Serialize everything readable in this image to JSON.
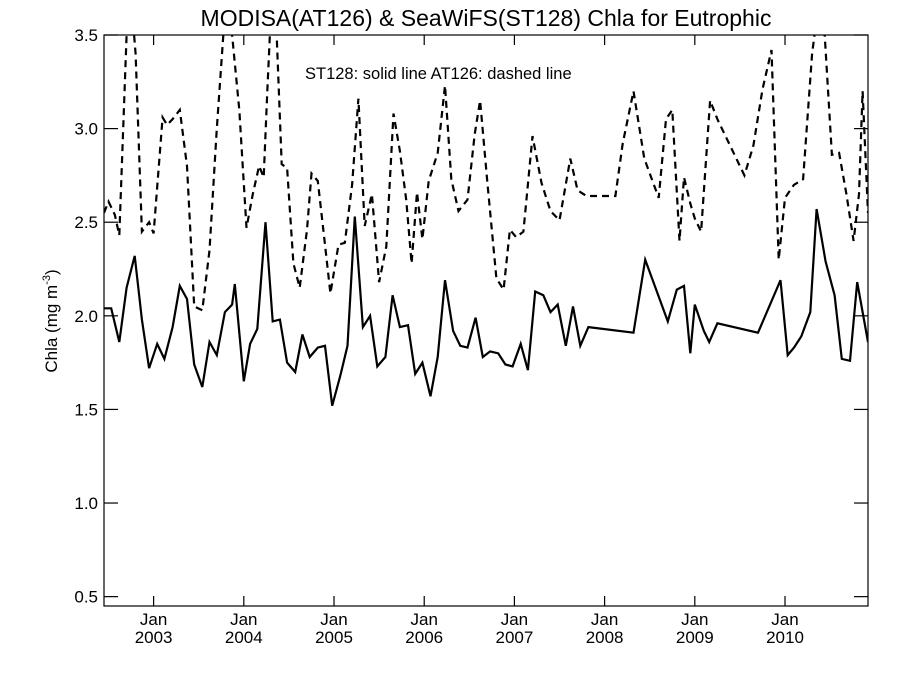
{
  "chart_data": {
    "type": "line",
    "title": "MODISA(AT126) & SeaWiFS(ST128)  Chla for Eutrophic",
    "ylabel": "Chla (mg m",
    "ylabel_superscript": "-3",
    "ylabel_close": ")",
    "annotation": "ST128: solid line   AT126: dashed line",
    "ylim": [
      0.45,
      3.5
    ],
    "xlim": [
      2002.45,
      2010.92
    ],
    "grid": false,
    "y_ticks": [
      {
        "value": 0.5,
        "label": "0.5"
      },
      {
        "value": 1.0,
        "label": "1.0"
      },
      {
        "value": 1.5,
        "label": "1.5"
      },
      {
        "value": 2.0,
        "label": "2.0"
      },
      {
        "value": 2.5,
        "label": "2.5"
      },
      {
        "value": 3.0,
        "label": "3.0"
      },
      {
        "value": 3.5,
        "label": "3.5"
      }
    ],
    "x_ticks": [
      {
        "value": 2003.0,
        "month": "Jan",
        "year": "2003"
      },
      {
        "value": 2004.0,
        "month": "Jan",
        "year": "2004"
      },
      {
        "value": 2005.0,
        "month": "Jan",
        "year": "2005"
      },
      {
        "value": 2006.0,
        "month": "Jan",
        "year": "2006"
      },
      {
        "value": 2007.0,
        "month": "Jan",
        "year": "2007"
      },
      {
        "value": 2008.0,
        "month": "Jan",
        "year": "2008"
      },
      {
        "value": 2009.0,
        "month": "Jan",
        "year": "2009"
      },
      {
        "value": 2010.0,
        "month": "Jan",
        "year": "2010"
      }
    ],
    "series": [
      {
        "name": "ST128",
        "style": "solid",
        "color": "#000000",
        "points": [
          [
            2002.45,
            2.04
          ],
          [
            2002.53,
            2.04
          ],
          [
            2002.62,
            1.86
          ],
          [
            2002.7,
            2.15
          ],
          [
            2002.79,
            2.32
          ],
          [
            2002.87,
            1.98
          ],
          [
            2002.95,
            1.72
          ],
          [
            2003.04,
            1.85
          ],
          [
            2003.12,
            1.77
          ],
          [
            2003.21,
            1.94
          ],
          [
            2003.29,
            2.16
          ],
          [
            2003.37,
            2.09
          ],
          [
            2003.45,
            1.74
          ],
          [
            2003.54,
            1.62
          ],
          [
            2003.62,
            1.86
          ],
          [
            2003.7,
            1.79
          ],
          [
            2003.79,
            2.02
          ],
          [
            2003.87,
            2.06
          ],
          [
            2003.9,
            2.17
          ],
          [
            2004.0,
            1.65
          ],
          [
            2004.07,
            1.85
          ],
          [
            2004.15,
            1.93
          ],
          [
            2004.24,
            2.5
          ],
          [
            2004.32,
            1.97
          ],
          [
            2004.4,
            1.98
          ],
          [
            2004.48,
            1.75
          ],
          [
            2004.57,
            1.7
          ],
          [
            2004.65,
            1.9
          ],
          [
            2004.73,
            1.78
          ],
          [
            2004.82,
            1.83
          ],
          [
            2004.9,
            1.84
          ],
          [
            2004.98,
            1.52
          ],
          [
            2005.07,
            1.68
          ],
          [
            2005.15,
            1.84
          ],
          [
            2005.23,
            2.53
          ],
          [
            2005.32,
            1.94
          ],
          [
            2005.4,
            2.0
          ],
          [
            2005.48,
            1.73
          ],
          [
            2005.57,
            1.78
          ],
          [
            2005.65,
            2.11
          ],
          [
            2005.73,
            1.94
          ],
          [
            2005.82,
            1.95
          ],
          [
            2005.9,
            1.69
          ],
          [
            2005.98,
            1.75
          ],
          [
            2006.07,
            1.57
          ],
          [
            2006.15,
            1.78
          ],
          [
            2006.23,
            2.19
          ],
          [
            2006.32,
            1.92
          ],
          [
            2006.4,
            1.84
          ],
          [
            2006.48,
            1.83
          ],
          [
            2006.57,
            1.99
          ],
          [
            2006.65,
            1.78
          ],
          [
            2006.73,
            1.81
          ],
          [
            2006.82,
            1.8
          ],
          [
            2006.9,
            1.74
          ],
          [
            2006.98,
            1.73
          ],
          [
            2007.07,
            1.85
          ],
          [
            2007.15,
            1.71
          ],
          [
            2007.23,
            2.13
          ],
          [
            2007.32,
            2.11
          ],
          [
            2007.4,
            2.02
          ],
          [
            2007.48,
            2.06
          ],
          [
            2007.57,
            1.84
          ],
          [
            2007.65,
            2.05
          ],
          [
            2007.73,
            1.84
          ],
          [
            2007.82,
            1.94
          ],
          [
            2008.32,
            1.91
          ],
          [
            2008.45,
            2.3
          ],
          [
            2008.7,
            1.97
          ],
          [
            2008.8,
            2.14
          ],
          [
            2008.88,
            2.16
          ],
          [
            2008.95,
            1.8
          ],
          [
            2009.0,
            2.06
          ],
          [
            2009.1,
            1.92
          ],
          [
            2009.16,
            1.86
          ],
          [
            2009.25,
            1.96
          ],
          [
            2009.7,
            1.91
          ],
          [
            2009.95,
            2.19
          ],
          [
            2010.03,
            1.79
          ],
          [
            2010.1,
            1.83
          ],
          [
            2010.18,
            1.89
          ],
          [
            2010.28,
            2.02
          ],
          [
            2010.35,
            2.57
          ],
          [
            2010.45,
            2.29
          ],
          [
            2010.55,
            2.11
          ],
          [
            2010.63,
            1.77
          ],
          [
            2010.72,
            1.76
          ],
          [
            2010.8,
            2.18
          ],
          [
            2010.92,
            1.86
          ]
        ]
      },
      {
        "name": "AT126",
        "style": "dashed",
        "color": "#000000",
        "points": [
          [
            2002.45,
            2.55
          ],
          [
            2002.5,
            2.61
          ],
          [
            2002.57,
            2.54
          ],
          [
            2002.62,
            2.43
          ],
          [
            2002.7,
            3.5
          ],
          [
            2002.75,
            3.7
          ],
          [
            2002.8,
            3.4
          ],
          [
            2002.87,
            2.45
          ],
          [
            2002.95,
            2.5
          ],
          [
            2003.0,
            2.44
          ],
          [
            2003.1,
            3.06
          ],
          [
            2003.15,
            3.02
          ],
          [
            2003.21,
            3.05
          ],
          [
            2003.29,
            3.1
          ],
          [
            2003.37,
            2.8
          ],
          [
            2003.45,
            2.05
          ],
          [
            2003.54,
            2.03
          ],
          [
            2003.62,
            2.35
          ],
          [
            2003.7,
            3.0
          ],
          [
            2003.79,
            3.62
          ],
          [
            2003.87,
            3.5
          ],
          [
            2003.95,
            3.1
          ],
          [
            2004.03,
            2.47
          ],
          [
            2004.1,
            2.65
          ],
          [
            2004.17,
            2.8
          ],
          [
            2004.22,
            2.74
          ],
          [
            2004.26,
            3.2
          ],
          [
            2004.3,
            3.62
          ],
          [
            2004.36,
            3.55
          ],
          [
            2004.42,
            2.81
          ],
          [
            2004.48,
            2.79
          ],
          [
            2004.55,
            2.28
          ],
          [
            2004.62,
            2.15
          ],
          [
            2004.7,
            2.46
          ],
          [
            2004.75,
            2.76
          ],
          [
            2004.82,
            2.72
          ],
          [
            2004.9,
            2.38
          ],
          [
            2004.96,
            2.12
          ],
          [
            2005.05,
            2.38
          ],
          [
            2005.12,
            2.39
          ],
          [
            2005.2,
            2.7
          ],
          [
            2005.27,
            3.16
          ],
          [
            2005.34,
            2.48
          ],
          [
            2005.42,
            2.65
          ],
          [
            2005.5,
            2.18
          ],
          [
            2005.58,
            2.37
          ],
          [
            2005.66,
            3.08
          ],
          [
            2005.73,
            2.88
          ],
          [
            2005.8,
            2.62
          ],
          [
            2005.86,
            2.28
          ],
          [
            2005.92,
            2.66
          ],
          [
            2005.98,
            2.41
          ],
          [
            2006.05,
            2.72
          ],
          [
            2006.15,
            2.87
          ],
          [
            2006.23,
            3.23
          ],
          [
            2006.3,
            2.73
          ],
          [
            2006.38,
            2.56
          ],
          [
            2006.48,
            2.62
          ],
          [
            2006.56,
            2.97
          ],
          [
            2006.62,
            3.15
          ],
          [
            2006.7,
            2.71
          ],
          [
            2006.8,
            2.2
          ],
          [
            2006.88,
            2.14
          ],
          [
            2006.95,
            2.46
          ],
          [
            2007.02,
            2.42
          ],
          [
            2007.1,
            2.45
          ],
          [
            2007.2,
            2.96
          ],
          [
            2007.3,
            2.71
          ],
          [
            2007.4,
            2.56
          ],
          [
            2007.5,
            2.51
          ],
          [
            2007.62,
            2.84
          ],
          [
            2007.7,
            2.67
          ],
          [
            2007.8,
            2.64
          ],
          [
            2008.12,
            2.64
          ],
          [
            2008.2,
            2.92
          ],
          [
            2008.32,
            3.2
          ],
          [
            2008.44,
            2.84
          ],
          [
            2008.6,
            2.63
          ],
          [
            2008.68,
            3.05
          ],
          [
            2008.75,
            3.1
          ],
          [
            2008.83,
            2.4
          ],
          [
            2008.88,
            2.74
          ],
          [
            2008.95,
            2.6
          ],
          [
            2009.0,
            2.52
          ],
          [
            2009.07,
            2.45
          ],
          [
            2009.17,
            3.15
          ],
          [
            2009.25,
            3.05
          ],
          [
            2009.4,
            2.9
          ],
          [
            2009.55,
            2.75
          ],
          [
            2009.65,
            2.91
          ],
          [
            2009.75,
            3.21
          ],
          [
            2009.85,
            3.42
          ],
          [
            2009.93,
            2.3
          ],
          [
            2010.0,
            2.63
          ],
          [
            2010.1,
            2.7
          ],
          [
            2010.2,
            2.73
          ],
          [
            2010.3,
            3.4
          ],
          [
            2010.38,
            3.7
          ],
          [
            2010.44,
            3.5
          ],
          [
            2010.52,
            2.86
          ],
          [
            2010.6,
            2.87
          ],
          [
            2010.68,
            2.65
          ],
          [
            2010.76,
            2.4
          ],
          [
            2010.82,
            2.65
          ],
          [
            2010.86,
            3.2
          ],
          [
            2010.92,
            2.55
          ]
        ]
      }
    ]
  }
}
